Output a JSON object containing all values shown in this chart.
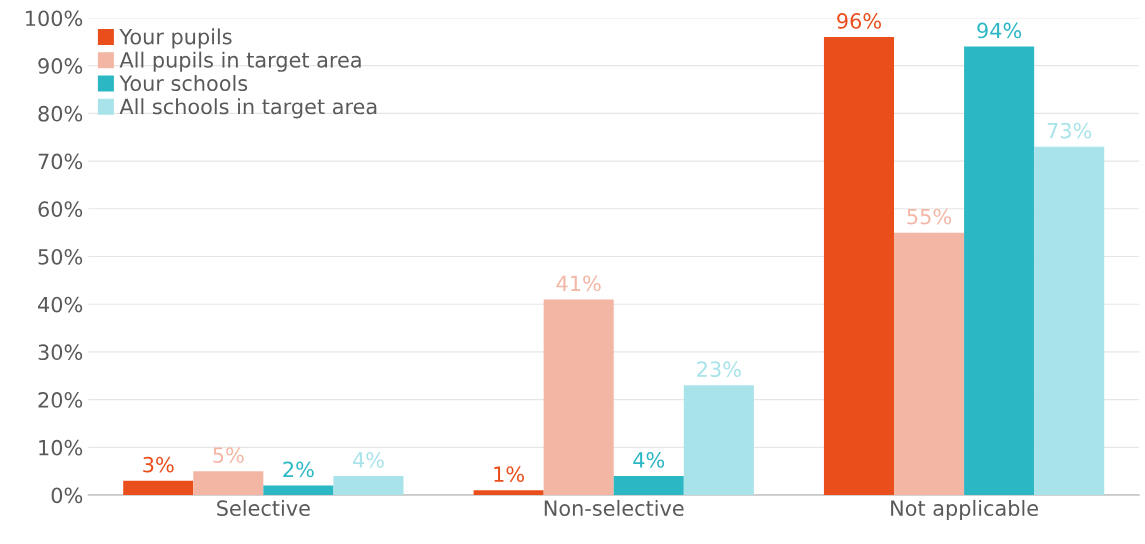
{
  "chart_data": {
    "type": "bar",
    "categories": [
      "Selective",
      "Non-selective",
      "Not applicable"
    ],
    "series": [
      {
        "name": "Your pupils",
        "color": "#e94e1b",
        "values": [
          3,
          1,
          96
        ],
        "value_labels": [
          "3%",
          "1%",
          "96%"
        ]
      },
      {
        "name": "All pupils in target area",
        "color": "#f4b6a4",
        "values": [
          5,
          41,
          55
        ],
        "value_labels": [
          "5%",
          "41%",
          "55%"
        ]
      },
      {
        "name": "Your schools",
        "color": "#2bb7c4",
        "values": [
          2,
          4,
          94
        ],
        "value_labels": [
          "2%",
          "4%",
          "94%"
        ]
      },
      {
        "name": "All schools in target area",
        "color": "#a8e3ea",
        "values": [
          4,
          23,
          73
        ],
        "value_labels": [
          "4%",
          "23%",
          "73%"
        ]
      }
    ],
    "ylim": [
      0,
      100
    ],
    "yticks": [
      {
        "value": 0,
        "label": "0%"
      },
      {
        "value": 10,
        "label": "10%"
      },
      {
        "value": 20,
        "label": "20%"
      },
      {
        "value": 30,
        "label": "30%"
      },
      {
        "value": 40,
        "label": "40%"
      },
      {
        "value": 50,
        "label": "50%"
      },
      {
        "value": 60,
        "label": "60%"
      },
      {
        "value": 70,
        "label": "70%"
      },
      {
        "value": 80,
        "label": "80%"
      },
      {
        "value": 90,
        "label": "90%"
      },
      {
        "value": 100,
        "label": "100%"
      }
    ],
    "grid": "y",
    "legend": "top left"
  }
}
